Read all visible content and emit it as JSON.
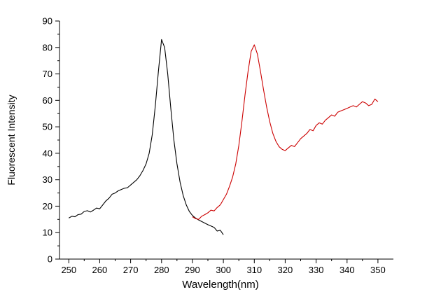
{
  "figure": {
    "background": "#ffffff"
  },
  "chart_data": {
    "type": "line",
    "title": "",
    "xlabel": "Wavelength(nm)",
    "ylabel": "Fluorescent Intensity",
    "xlim": [
      247,
      355
    ],
    "ylim": [
      0,
      90
    ],
    "xticks": [
      250,
      260,
      270,
      280,
      290,
      300,
      310,
      320,
      330,
      340,
      350
    ],
    "xminorticks": [
      255,
      265,
      275,
      285,
      295,
      305,
      315,
      325,
      335,
      345
    ],
    "yticks": [
      0,
      10,
      20,
      30,
      40,
      50,
      60,
      70,
      80,
      90
    ],
    "yminorticks": [
      5,
      15,
      25,
      35,
      45,
      55,
      65,
      75,
      85
    ],
    "grid": false,
    "legend": null,
    "series": [
      {
        "name": "black-curve",
        "color": "#000000",
        "x": [
          250,
          251,
          252,
          253,
          254,
          255,
          256,
          257,
          258,
          259,
          260,
          261,
          262,
          263,
          264,
          265,
          266,
          267,
          268,
          269,
          270,
          271,
          272,
          273,
          274,
          275,
          276,
          277,
          278,
          279,
          280,
          281,
          282,
          283,
          284,
          285,
          286,
          287,
          288,
          289,
          290,
          291,
          292,
          293,
          294,
          295,
          296,
          297,
          298,
          299,
          300
        ],
        "y": [
          15.5,
          16.2,
          16.0,
          16.8,
          17.0,
          18.0,
          18.3,
          17.8,
          18.5,
          19.3,
          19.0,
          20.5,
          22.0,
          23.0,
          24.5,
          25.0,
          25.8,
          26.3,
          26.8,
          27.0,
          28.0,
          29.0,
          30.0,
          31.5,
          33.5,
          36.0,
          40.0,
          47.0,
          58.0,
          71.0,
          83.0,
          80.0,
          70.0,
          57.0,
          45.0,
          36.0,
          29.0,
          24.0,
          20.5,
          18.0,
          16.5,
          15.5,
          14.8,
          14.2,
          13.6,
          13.0,
          12.5,
          12.0,
          10.6,
          10.9,
          9.2
        ]
      },
      {
        "name": "red-curve",
        "color": "#cc0000",
        "x": [
          290,
          291,
          292,
          293,
          294,
          295,
          296,
          297,
          298,
          299,
          300,
          301,
          302,
          303,
          304,
          305,
          306,
          307,
          308,
          309,
          310,
          311,
          312,
          313,
          314,
          315,
          316,
          317,
          318,
          319,
          320,
          321,
          322,
          323,
          324,
          325,
          326,
          327,
          328,
          329,
          330,
          331,
          332,
          333,
          334,
          335,
          336,
          337,
          338,
          339,
          340,
          341,
          342,
          343,
          344,
          345,
          346,
          347,
          348,
          349,
          350
        ],
        "y": [
          16.0,
          15.3,
          15.0,
          16.2,
          16.8,
          17.5,
          18.5,
          18.2,
          19.5,
          20.5,
          22.5,
          24.5,
          27.5,
          31.0,
          36.0,
          43.0,
          52.0,
          62.0,
          71.0,
          78.5,
          81.0,
          77.5,
          71.0,
          64.0,
          57.5,
          52.0,
          47.5,
          44.5,
          42.5,
          41.5,
          41.0,
          42.0,
          43.0,
          42.5,
          44.0,
          45.5,
          46.5,
          47.5,
          49.0,
          48.5,
          50.5,
          51.5,
          51.0,
          52.5,
          53.5,
          54.5,
          54.0,
          55.5,
          56.0,
          56.5,
          57.0,
          57.5,
          58.0,
          57.5,
          58.5,
          59.5,
          59.0,
          58.0,
          58.5,
          60.5,
          59.5
        ]
      }
    ]
  }
}
